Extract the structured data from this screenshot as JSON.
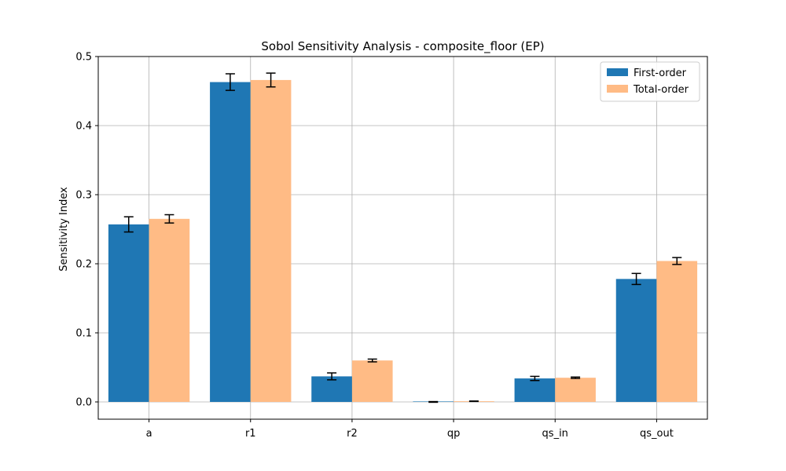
{
  "chart_data": {
    "type": "bar",
    "title": "Sobol Sensitivity Analysis - composite_floor (EP)",
    "xlabel": "",
    "ylabel": "Sensitivity Index",
    "categories": [
      "a",
      "r1",
      "r2",
      "qp",
      "qs_in",
      "qs_out"
    ],
    "ylim": [
      -0.025,
      0.5
    ],
    "yticks": [
      0.0,
      0.1,
      0.2,
      0.3,
      0.4,
      0.5
    ],
    "ytick_labels": [
      "0.0",
      "0.1",
      "0.2",
      "0.3",
      "0.4",
      "0.5"
    ],
    "grid": true,
    "legend_position": "top-right",
    "series": [
      {
        "name": "First-order",
        "color": "#1f77b4",
        "values": [
          0.257,
          0.463,
          0.037,
          0.0,
          0.034,
          0.178
        ],
        "errors": [
          0.011,
          0.012,
          0.005,
          0.0005,
          0.003,
          0.008
        ]
      },
      {
        "name": "Total-order",
        "color": "#ffbb85",
        "values": [
          0.265,
          0.466,
          0.06,
          0.001,
          0.035,
          0.204
        ],
        "errors": [
          0.006,
          0.01,
          0.002,
          0.0003,
          0.001,
          0.005
        ]
      }
    ]
  }
}
